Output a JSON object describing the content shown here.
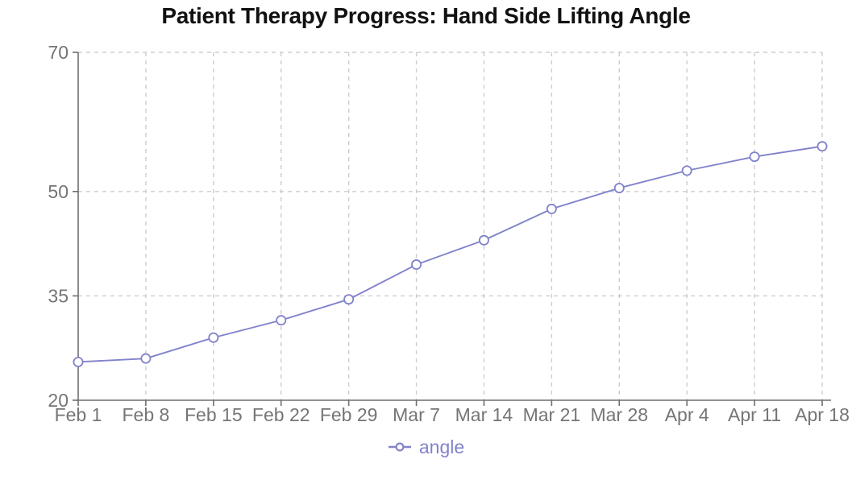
{
  "chart_data": {
    "type": "line",
    "title": "Patient Therapy Progress: Hand Side Lifting Angle",
    "categories": [
      "Feb 1",
      "Feb 8",
      "Feb 15",
      "Feb 22",
      "Feb 29",
      "Mar 7",
      "Mar 14",
      "Mar 21",
      "Mar 28",
      "Apr 4",
      "Apr 11",
      "Apr 18"
    ],
    "series": [
      {
        "name": "angle",
        "values": [
          25.5,
          26,
          29,
          31.5,
          34.5,
          39.5,
          43,
          47.5,
          50.5,
          53,
          55,
          56.5
        ],
        "color": "#8183cb",
        "marker": "open-circle"
      }
    ],
    "xlabel": "",
    "ylabel": "",
    "ylim": [
      20,
      70
    ],
    "yticks": [
      20,
      35,
      50,
      70
    ],
    "grid": true,
    "grid_style": "dashed",
    "legend_position": "bottom"
  },
  "colors": {
    "background": "#ffffff",
    "title": "#111111",
    "axis_line": "#6e6e6e",
    "axis_label": "#757575",
    "gridline": "#cdcdcd",
    "series": "#8183cb",
    "marker_fill": "#ffffff"
  }
}
